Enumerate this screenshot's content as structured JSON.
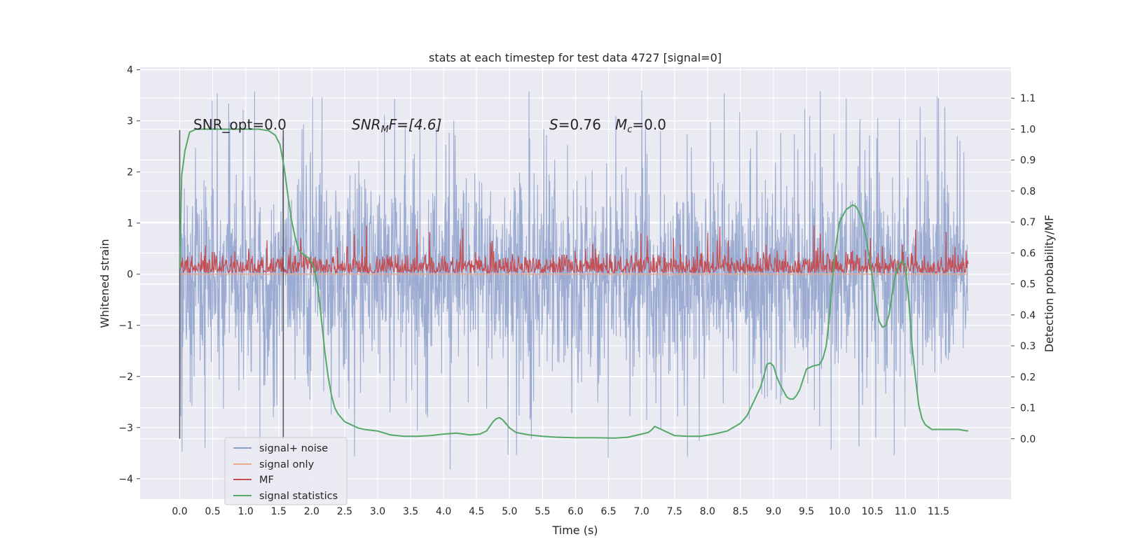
{
  "chart_data": {
    "type": "line",
    "title": "stats at each timestep for test data 4727 [signal=0]",
    "xlabel": "Time (s)",
    "ylabel": "Whitened strain",
    "ylabel_right": "Detection probability/MF",
    "xlim": [
      -0.6,
      12.6
    ],
    "ylim": [
      -4.4,
      4.05
    ],
    "ylim_right": [
      -0.195,
      1.2
    ],
    "x_ticks": [
      0.0,
      0.5,
      1.0,
      1.5,
      2.0,
      2.5,
      3.0,
      3.5,
      4.0,
      4.5,
      5.0,
      5.5,
      6.0,
      6.5,
      7.0,
      7.5,
      8.0,
      8.5,
      9.0,
      9.5,
      10.0,
      10.5,
      11.0,
      11.5
    ],
    "x_tick_labels": [
      "0.0",
      "0.5",
      "1.0",
      "1.5",
      "2.0",
      "2.5",
      "3.0",
      "3.5",
      "4.0",
      "4.5",
      "5.0",
      "5.5",
      "6.0",
      "6.5",
      "7.0",
      "7.5",
      "8.0",
      "8.5",
      "9.0",
      "9.5",
      "10.0",
      "10.5",
      "11.0",
      "11.5"
    ],
    "y_ticks": [
      -4,
      -3,
      -2,
      -1,
      0,
      1,
      2,
      3,
      4
    ],
    "y_tick_labels": [
      "−4",
      "−3",
      "−2",
      "−1",
      "0",
      "1",
      "2",
      "3",
      "4"
    ],
    "y_ticks_right": [
      0.0,
      0.1,
      0.2,
      0.3,
      0.4,
      0.5,
      0.6,
      0.7,
      0.8,
      0.9,
      1.0,
      1.1
    ],
    "y_tick_labels_right": [
      "0.0",
      "0.1",
      "0.2",
      "0.3",
      "0.4",
      "0.5",
      "0.6",
      "0.7",
      "0.8",
      "0.9",
      "1.0",
      "1.1"
    ],
    "grid": true,
    "legend_position": "lower-left",
    "annotations": {
      "snr_opt": "SNR_opt=0.0",
      "snr_mf_var": "SNR",
      "snr_mf_sub": "M",
      "snr_mf_rest": "F=[4.6]",
      "s_var": "S",
      "s_value": "=0.76",
      "mc_var": "M",
      "mc_sub": "c",
      "mc_value": "=0.0"
    },
    "vlines": [
      0.0,
      1.57
    ],
    "series": [
      {
        "name": "signal+ noise",
        "color": "#8da0cb",
        "axis": "left",
        "description_values": "white noise, amplitude about ±2 to ±3.6, from 0.0 to 11.95 s"
      },
      {
        "name": "signal only",
        "color": "#e8a98c",
        "axis": "left",
        "values_constant": 0.0
      },
      {
        "name": "MF",
        "color": "#c44e52",
        "axis": "right",
        "base_level": 0.54,
        "typical_max": 0.65,
        "peak_max": 0.69
      },
      {
        "name": "signal statistics",
        "color": "#55a868",
        "axis": "right",
        "x": [
          0.0,
          0.03,
          0.08,
          0.15,
          0.25,
          0.4,
          0.6,
          0.8,
          1.0,
          1.2,
          1.35,
          1.45,
          1.52,
          1.58,
          1.65,
          1.7,
          1.75,
          1.8,
          1.85,
          1.9,
          1.95,
          2.0,
          2.05,
          2.1,
          2.15,
          2.2,
          2.25,
          2.3,
          2.35,
          2.4,
          2.5,
          2.6,
          2.7,
          2.8,
          3.0,
          3.2,
          3.4,
          3.6,
          3.8,
          4.0,
          4.2,
          4.4,
          4.55,
          4.65,
          4.75,
          4.8,
          4.85,
          4.9,
          5.0,
          5.1,
          5.3,
          5.5,
          5.7,
          6.0,
          6.3,
          6.6,
          6.8,
          7.0,
          7.1,
          7.15,
          7.2,
          7.3,
          7.5,
          7.7,
          7.9,
          8.1,
          8.3,
          8.5,
          8.6,
          8.7,
          8.8,
          8.85,
          8.9,
          8.95,
          9.0,
          9.05,
          9.1,
          9.15,
          9.2,
          9.25,
          9.3,
          9.35,
          9.4,
          9.5,
          9.6,
          9.7,
          9.75,
          9.8,
          9.85,
          9.9,
          9.95,
          10.0,
          10.1,
          10.2,
          10.25,
          10.3,
          10.35,
          10.4,
          10.45,
          10.5,
          10.55,
          10.6,
          10.65,
          10.7,
          10.75,
          10.8,
          10.85,
          10.9,
          10.95,
          11.0,
          11.05,
          11.1,
          11.15,
          11.2,
          11.25,
          11.3,
          11.4,
          11.5,
          11.6,
          11.8,
          11.95
        ],
        "values": [
          0.55,
          0.85,
          0.93,
          0.99,
          1.0,
          1.0,
          1.0,
          1.0,
          1.0,
          1.0,
          0.995,
          0.98,
          0.95,
          0.88,
          0.77,
          0.7,
          0.65,
          0.61,
          0.6,
          0.59,
          0.585,
          0.57,
          0.54,
          0.48,
          0.38,
          0.28,
          0.2,
          0.14,
          0.1,
          0.08,
          0.055,
          0.045,
          0.035,
          0.03,
          0.025,
          0.012,
          0.008,
          0.008,
          0.01,
          0.015,
          0.018,
          0.012,
          0.015,
          0.025,
          0.055,
          0.065,
          0.068,
          0.06,
          0.035,
          0.02,
          0.012,
          0.008,
          0.005,
          0.003,
          0.003,
          0.002,
          0.005,
          0.015,
          0.02,
          0.028,
          0.04,
          0.03,
          0.01,
          0.008,
          0.008,
          0.015,
          0.025,
          0.05,
          0.075,
          0.12,
          0.165,
          0.2,
          0.24,
          0.245,
          0.235,
          0.2,
          0.175,
          0.155,
          0.135,
          0.128,
          0.128,
          0.14,
          0.16,
          0.225,
          0.235,
          0.24,
          0.26,
          0.3,
          0.4,
          0.53,
          0.63,
          0.7,
          0.74,
          0.755,
          0.75,
          0.73,
          0.7,
          0.655,
          0.59,
          0.52,
          0.44,
          0.38,
          0.36,
          0.365,
          0.4,
          0.47,
          0.53,
          0.56,
          0.575,
          0.555,
          0.45,
          0.3,
          0.2,
          0.11,
          0.065,
          0.045,
          0.03,
          0.03,
          0.03,
          0.03,
          0.025
        ]
      }
    ]
  }
}
